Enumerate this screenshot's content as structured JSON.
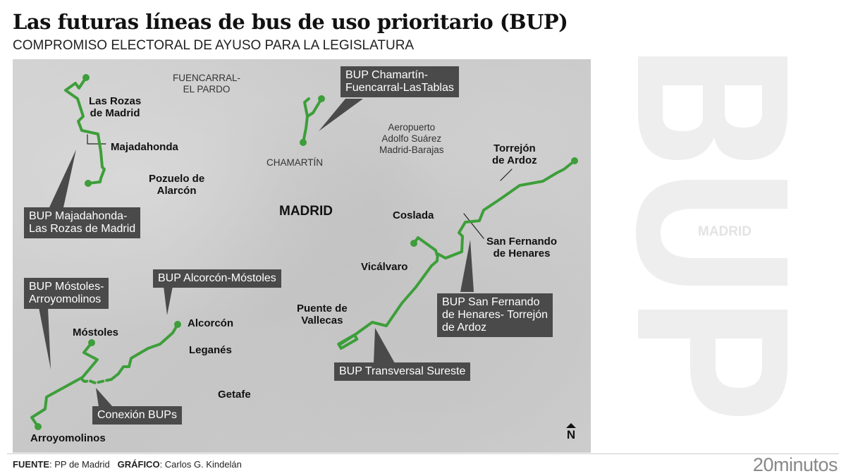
{
  "header": {
    "title": "Las futuras líneas de bus de uso prioritario (BUP)",
    "subtitle": "COMPROMISO ELECTORAL DE AYUSO PARA LA LEGISLATURA"
  },
  "map": {
    "route_color": "#3d9e3a",
    "callout_color": "#4a4a4a",
    "places_bold": [
      "Las Rozas\nde Madrid",
      "Majadahonda",
      "Pozuelo de\nAlarcón",
      "Coslada",
      "Torrejón\nde Ardoz",
      "San Fernando\nde Henares",
      "Vicálvaro",
      "Puente de\nVallecas",
      "Alcorcón",
      "Leganés",
      "Getafe",
      "Móstoles",
      "Arroyomolinos"
    ],
    "places_light": [
      "FUENCARRAL-\nEL PARDO",
      "CHAMARTÍN",
      "Aeropuerto\nAdolfo Suárez\nMadrid-Barajas"
    ],
    "capital": "MADRID",
    "callouts": [
      "BUP Majadahonda-\nLas Rozas de Madrid",
      "BUP Chamartín-\nFuencarral-LasTablas",
      "BUP Alcorcón-Móstoles",
      "BUP Móstoles-\nArroyomolinos",
      "Conexión BUPs",
      "BUP San Fernando\nde Henares- Torrejón\nde Ardoz",
      "BUP Transversal Sureste"
    ],
    "north": "N",
    "north_icon": "north-arrow-icon"
  },
  "watermark": {
    "big": "BUP",
    "small": "MADRID"
  },
  "footer": {
    "source_label": "FUENTE",
    "source": ": PP de Madrid",
    "graphic_label": "GRÁFICO",
    "graphic": ": Carlos G. Kindelán",
    "brand": "20minutos"
  }
}
